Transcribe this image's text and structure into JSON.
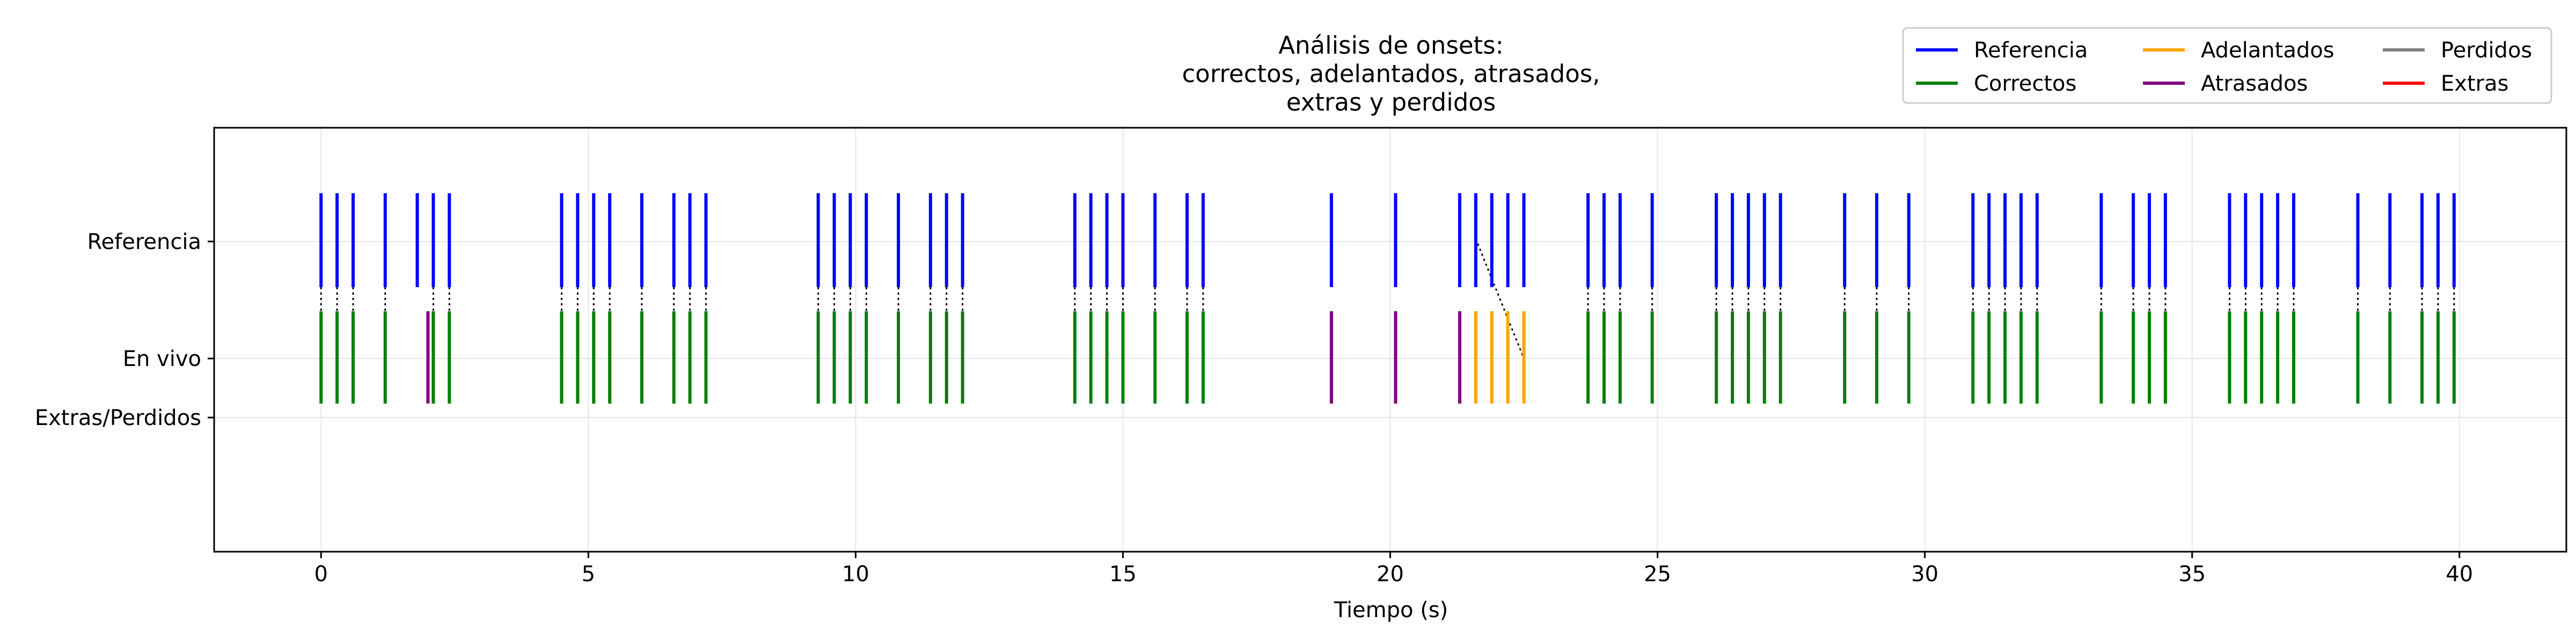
{
  "chart_data": {
    "type": "event-raster",
    "title_lines": [
      "Análisis de onsets:",
      "correctos, adelantados, atrasados,",
      "extras y perdidos"
    ],
    "xlabel": "Tiempo (s)",
    "ylabel": "",
    "xlim": [
      -2,
      42
    ],
    "x_ticks": [
      0,
      5,
      10,
      15,
      20,
      25,
      30,
      35,
      40
    ],
    "y_categories": [
      "Referencia",
      "En vivo",
      "Extras/Perdidos"
    ],
    "grid": true,
    "legend_position": "top-right",
    "legend": [
      {
        "name": "Referencia",
        "color": "#0000ff"
      },
      {
        "name": "Correctos",
        "color": "#008000"
      },
      {
        "name": "Adelantados",
        "color": "#ffa500"
      },
      {
        "name": "Atrasados",
        "color": "#800080"
      },
      {
        "name": "Perdidos",
        "color": "#808080"
      },
      {
        "name": "Extras",
        "color": "#ff0000"
      }
    ],
    "colors": {
      "referencia": "#0000ff",
      "correctos": "#008000",
      "adelantados": "#ffa500",
      "atrasados": "#800080",
      "perdidos": "#808080",
      "extras": "#ff0000",
      "match_lines": "#000000"
    },
    "reference_onsets": [
      0.0,
      0.3,
      0.6,
      1.2,
      1.8,
      2.1,
      2.4,
      4.5,
      4.8,
      5.1,
      5.4,
      6.0,
      6.6,
      6.9,
      7.2,
      9.3,
      9.6,
      9.9,
      10.2,
      10.8,
      11.4,
      11.7,
      12.0,
      14.1,
      14.4,
      14.7,
      15.0,
      15.6,
      16.2,
      16.5,
      18.9,
      20.1,
      21.3,
      21.6,
      21.9,
      22.2,
      22.5,
      23.7,
      24.0,
      24.3,
      24.9,
      26.1,
      26.4,
      26.7,
      27.0,
      27.3,
      28.5,
      29.1,
      29.7,
      30.9,
      31.2,
      31.5,
      31.8,
      32.1,
      33.3,
      33.9,
      34.2,
      34.5,
      35.7,
      36.0,
      36.3,
      36.6,
      36.9,
      38.1,
      38.7,
      39.3,
      39.6,
      39.9
    ],
    "live_correctos": [
      0.0,
      0.3,
      0.6,
      1.2,
      2.1,
      2.4,
      4.5,
      4.8,
      5.1,
      5.4,
      6.0,
      6.6,
      6.9,
      7.2,
      9.3,
      9.6,
      9.9,
      10.2,
      10.8,
      11.4,
      11.7,
      12.0,
      14.1,
      14.4,
      14.7,
      15.0,
      15.6,
      16.2,
      16.5,
      23.7,
      24.0,
      24.3,
      24.9,
      26.1,
      26.4,
      26.7,
      27.0,
      27.3,
      28.5,
      29.1,
      29.7,
      30.9,
      31.2,
      31.5,
      31.8,
      32.1,
      33.3,
      33.9,
      34.2,
      34.5,
      35.7,
      36.0,
      36.3,
      36.6,
      36.9,
      38.1,
      38.7,
      39.3,
      39.6,
      39.9
    ],
    "live_adelantados": [
      21.6,
      21.9,
      22.2,
      22.5
    ],
    "live_atrasados": [
      2.0,
      18.9,
      20.1,
      21.3
    ],
    "perdidos": [],
    "extras": [],
    "mismatch_links": [
      {
        "ref": 21.6,
        "live": 22.5
      }
    ]
  }
}
